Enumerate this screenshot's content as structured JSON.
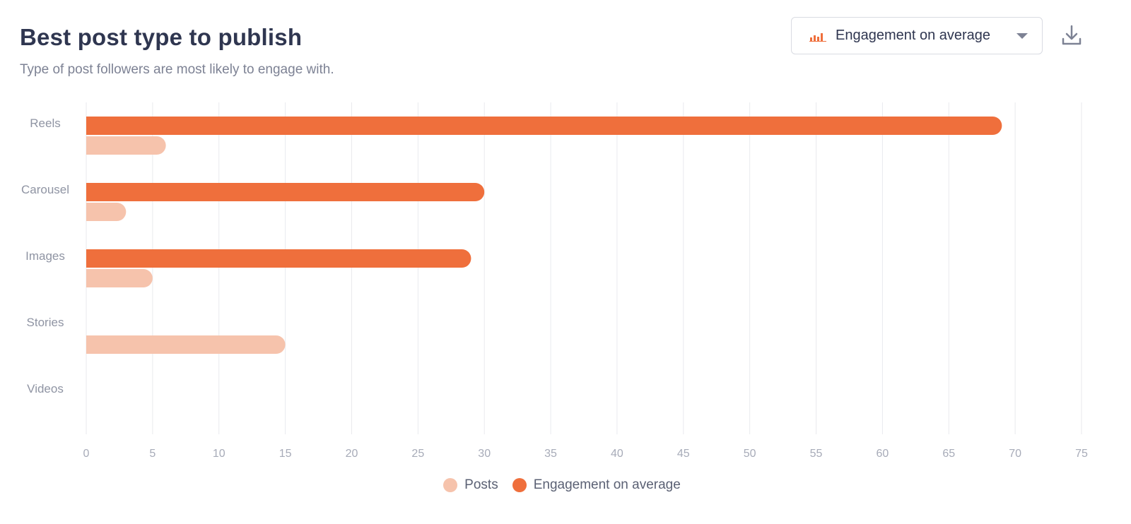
{
  "header": {
    "title": "Best post type to publish",
    "subtitle": "Type of post followers are most likely to engage with."
  },
  "controls": {
    "metric_select_value": "Engagement on average",
    "metric_select_icon": "bar-chart-icon",
    "download_icon": "download-icon"
  },
  "colors": {
    "engagement": "#ef6f3c",
    "posts": "#f6c3ac",
    "grid": "#e9eaee",
    "accent": "#ef6f3c"
  },
  "chart_data": {
    "type": "bar",
    "orientation": "horizontal",
    "categories": [
      "Reels",
      "Carousel",
      "Images",
      "Stories",
      "Videos"
    ],
    "series": [
      {
        "name": "Engagement on average",
        "values": [
          69,
          30,
          29,
          0,
          0
        ]
      },
      {
        "name": "Posts",
        "values": [
          6,
          3,
          5,
          15,
          0
        ]
      }
    ],
    "xlim": [
      0,
      75
    ],
    "xticks": [
      0,
      5,
      10,
      15,
      20,
      25,
      30,
      35,
      40,
      45,
      50,
      55,
      60,
      65,
      70,
      75
    ],
    "grid": true,
    "legend_position": "bottom"
  },
  "legend": {
    "items": [
      {
        "label": "Posts"
      },
      {
        "label": "Engagement on average"
      }
    ]
  }
}
